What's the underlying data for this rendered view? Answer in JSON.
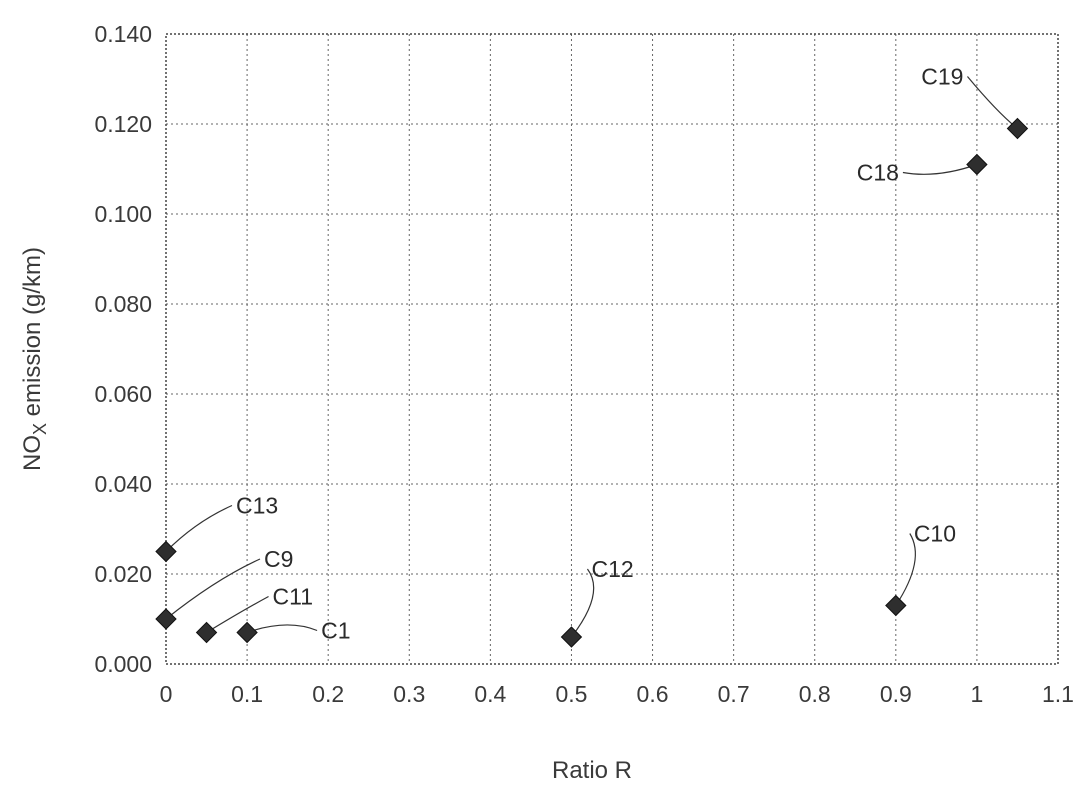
{
  "chart_data": {
    "type": "scatter",
    "xlabel": "Ratio R",
    "ylabel_main": "NO",
    "ylabel_sub": "X",
    "ylabel_rest": " emission (g/km)",
    "xlim": [
      0,
      1.1
    ],
    "ylim": [
      0,
      0.14
    ],
    "x_ticks": [
      "0",
      "0.1",
      "0.2",
      "0.3",
      "0.4",
      "0.5",
      "0.6",
      "0.7",
      "0.8",
      "0.9",
      "1",
      "1.1"
    ],
    "y_ticks": [
      "0.000",
      "0.020",
      "0.040",
      "0.060",
      "0.080",
      "0.100",
      "0.120",
      "0.140"
    ],
    "grid": true,
    "points": [
      {
        "label": "C13",
        "x": 0.0,
        "y": 0.025
      },
      {
        "label": "C9",
        "x": 0.0,
        "y": 0.01
      },
      {
        "label": "C11",
        "x": 0.05,
        "y": 0.007
      },
      {
        "label": "C1",
        "x": 0.1,
        "y": 0.007
      },
      {
        "label": "C12",
        "x": 0.5,
        "y": 0.006
      },
      {
        "label": "C10",
        "x": 0.9,
        "y": 0.013
      },
      {
        "label": "C18",
        "x": 1.0,
        "y": 0.111
      },
      {
        "label": "C19",
        "x": 1.05,
        "y": 0.119
      }
    ]
  }
}
